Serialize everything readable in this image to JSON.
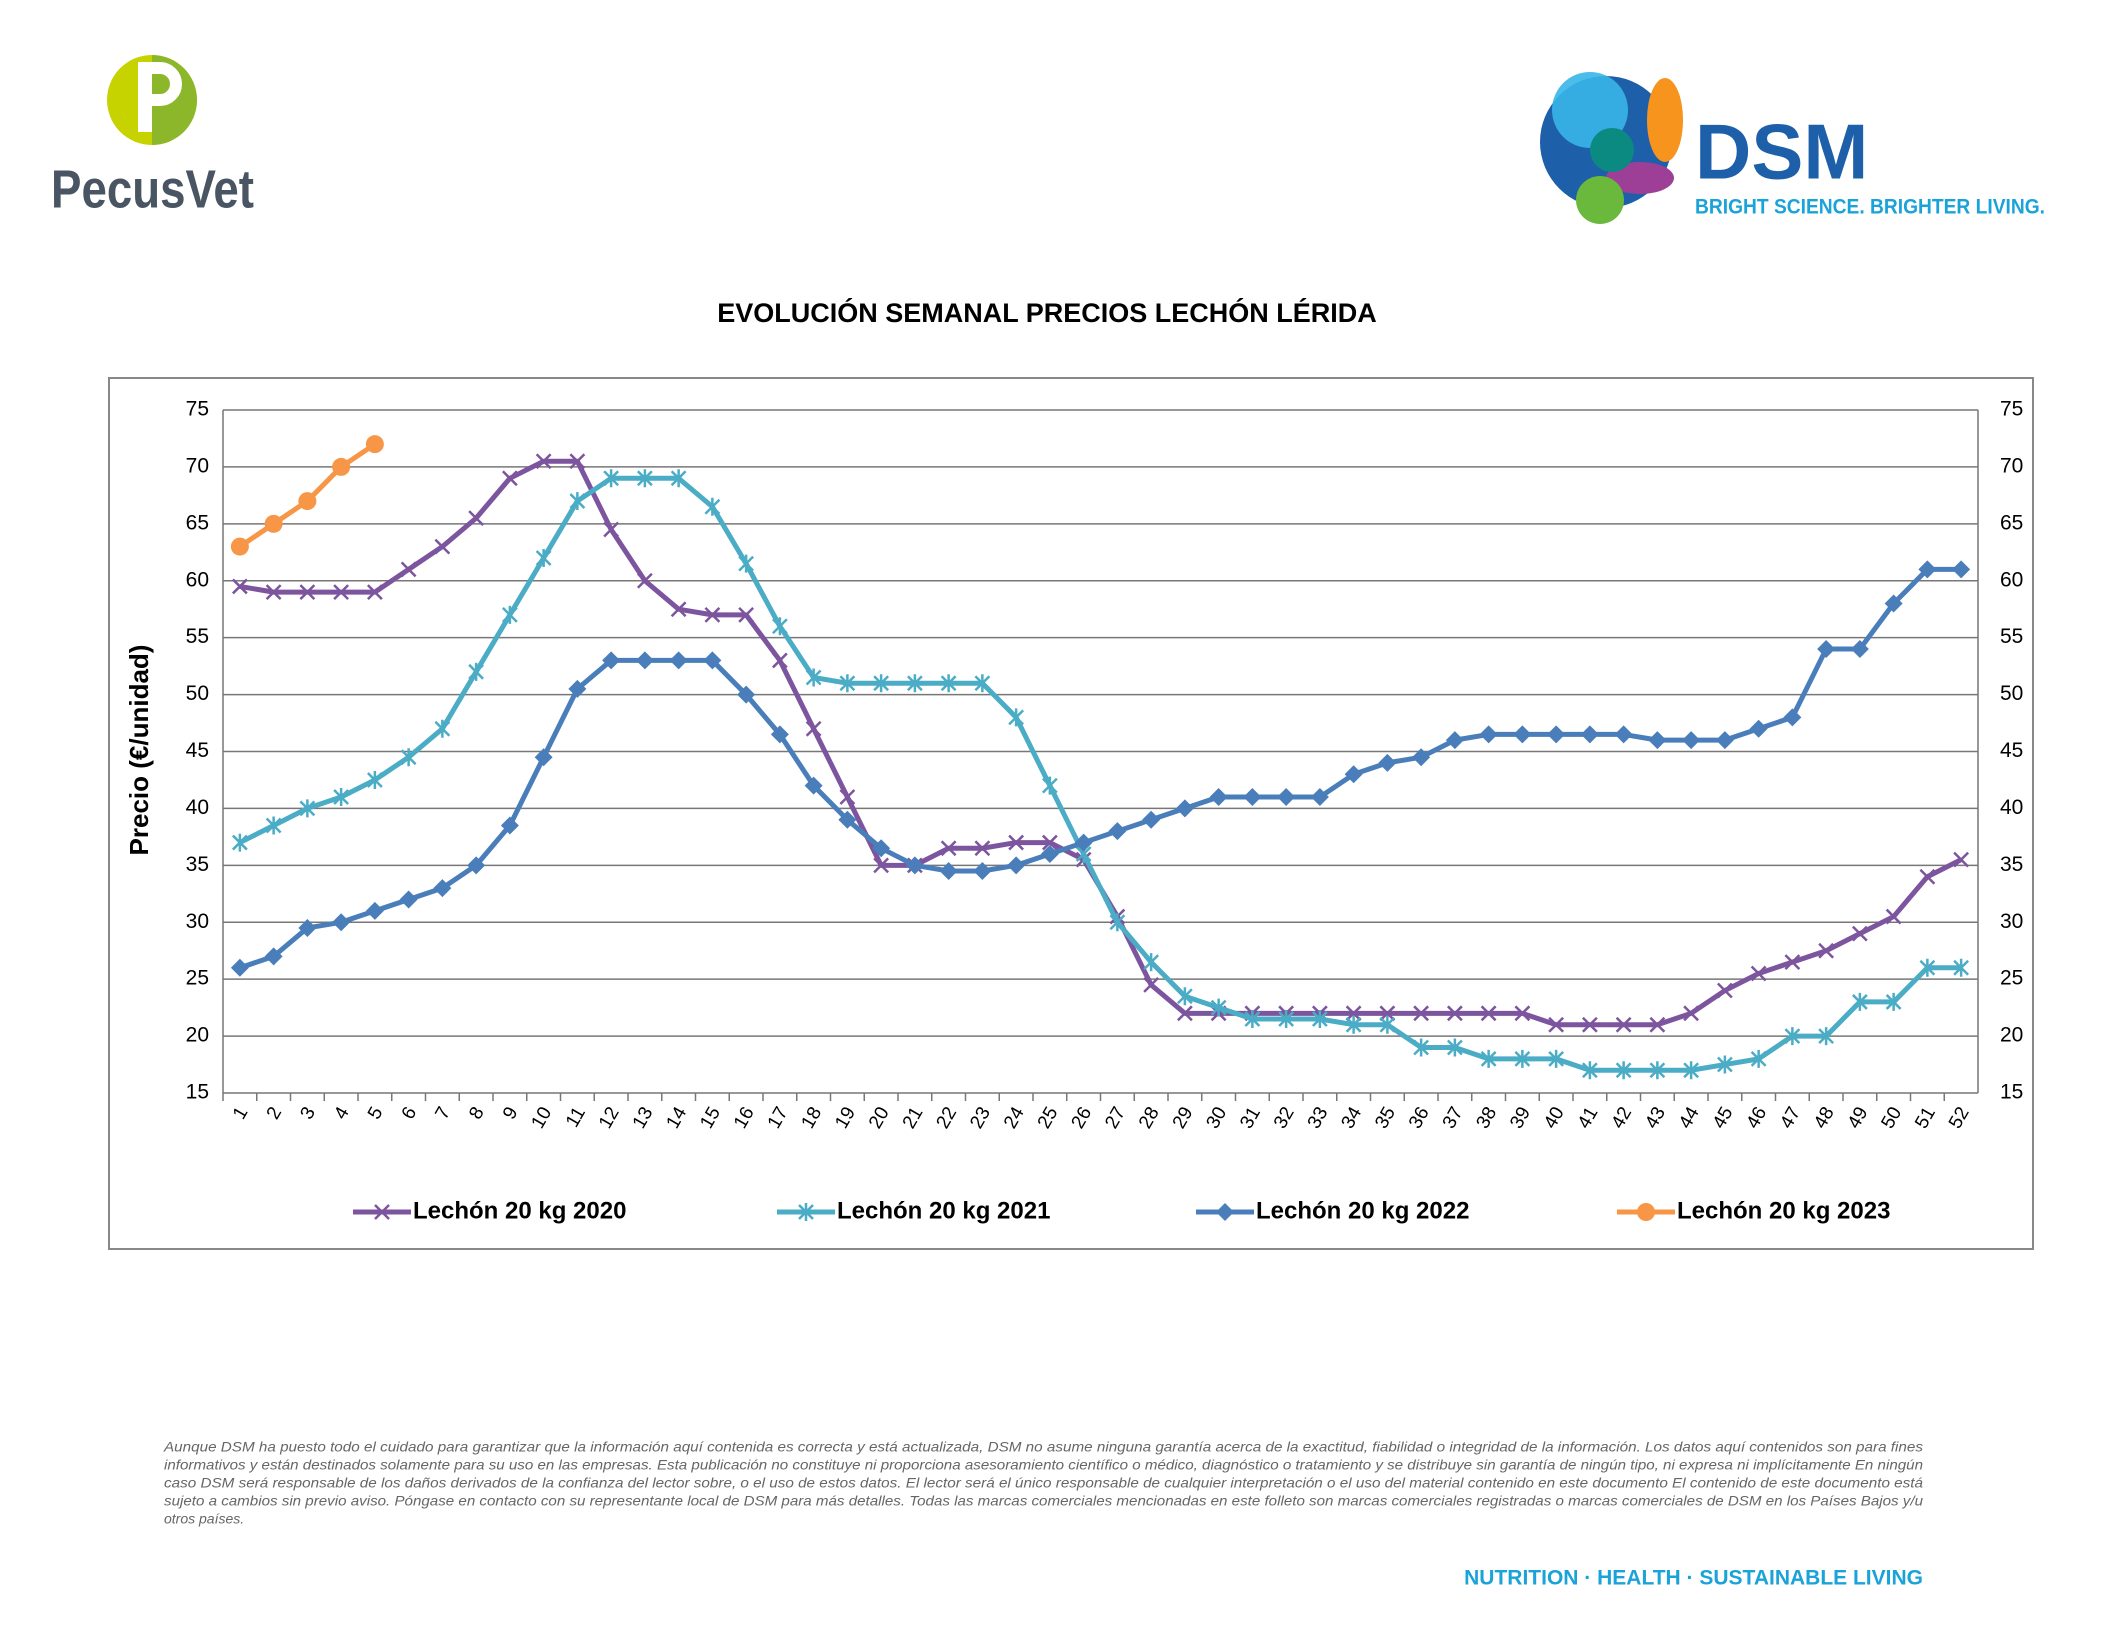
{
  "logo_left": {
    "text": "PecusVet"
  },
  "logo_right": {
    "text": "DSM",
    "tagline": "BRIGHT SCIENCE. BRIGHTER LIVING."
  },
  "chart_data": {
    "type": "line",
    "title": "EVOLUCIÓN SEMANAL PRECIOS LECHÓN LÉRIDA",
    "y_label": "Precio (€/unidad)",
    "categories": [
      "1",
      "2",
      "3",
      "4",
      "5",
      "6",
      "7",
      "8",
      "9",
      "10",
      "11",
      "12",
      "13",
      "14",
      "15",
      "16",
      "17",
      "18",
      "19",
      "20",
      "21",
      "22",
      "23",
      "24",
      "25",
      "26",
      "27",
      "28",
      "29",
      "30",
      "31",
      "32",
      "33",
      "34",
      "35",
      "36",
      "37",
      "38",
      "39",
      "40",
      "41",
      "42",
      "43",
      "44",
      "45",
      "46",
      "47",
      "48",
      "49",
      "50",
      "51",
      "52"
    ],
    "series": [
      {
        "name": "Lechón 20 kg 2020",
        "color": "#7d559f",
        "marker": "x",
        "values": [
          59.5,
          59,
          59,
          59,
          59,
          61,
          63,
          65.5,
          69,
          70.5,
          70.5,
          64.5,
          60,
          57.5,
          57,
          57,
          53,
          47,
          41,
          35,
          35,
          36.5,
          36.5,
          37,
          37,
          35.5,
          30.5,
          24.5,
          22,
          22,
          22,
          22,
          22,
          22,
          22,
          22,
          22,
          22,
          22,
          21,
          21,
          21,
          21,
          22,
          24,
          25.5,
          26.5,
          27.5,
          29,
          30.5,
          34,
          35.5
        ]
      },
      {
        "name": "Lechón 20 kg 2021",
        "color": "#4bacc6",
        "marker": "asterisk",
        "values": [
          37,
          38.5,
          40,
          41,
          42.5,
          44.5,
          47,
          52,
          57,
          62,
          67,
          69,
          69,
          69,
          66.5,
          61.5,
          56,
          51.5,
          51,
          51,
          51,
          51,
          51,
          48,
          42,
          36,
          30,
          26.5,
          23.5,
          22.5,
          21.5,
          21.5,
          21.5,
          21,
          21,
          19,
          19,
          18,
          18,
          18,
          17,
          17,
          17,
          17,
          17.5,
          18,
          20,
          20,
          23,
          23,
          26,
          26
        ]
      },
      {
        "name": "Lechón 20 kg 2022",
        "color": "#4a7ebb",
        "marker": "diamond",
        "values": [
          26,
          27,
          29.5,
          30,
          31,
          32,
          33,
          35,
          38.5,
          44.5,
          50.5,
          53,
          53,
          53,
          53,
          50,
          46.5,
          42,
          39,
          36.5,
          35,
          34.5,
          34.5,
          35,
          36,
          37,
          38,
          39,
          40,
          41,
          41,
          41,
          41,
          43,
          44,
          44.5,
          46,
          46.5,
          46.5,
          46.5,
          46.5,
          46.5,
          46,
          46,
          46,
          47,
          48,
          54,
          54,
          58,
          61,
          61
        ]
      },
      {
        "name": "Lechón 20 kg 2023",
        "color": "#f79646",
        "marker": "circle",
        "values": [
          63,
          65,
          67,
          70,
          72,
          null,
          null,
          null,
          null,
          null,
          null,
          null,
          null,
          null,
          null,
          null,
          null,
          null,
          null,
          null,
          null,
          null,
          null,
          null,
          null,
          null,
          null,
          null,
          null,
          null,
          null,
          null,
          null,
          null,
          null,
          null,
          null,
          null,
          null,
          null,
          null,
          null,
          null,
          null,
          null,
          null,
          null,
          null,
          null,
          null,
          null,
          null
        ]
      }
    ],
    "ylim": [
      15,
      75
    ],
    "yticks": [
      15,
      20,
      25,
      30,
      35,
      40,
      45,
      50,
      55,
      60,
      65,
      70,
      75
    ],
    "grid": true,
    "legend": "bottom"
  },
  "disclaimer": [
    "Aunque DSM ha puesto todo el cuidado para garantizar que la información aquí contenida es correcta y está actualizada, DSM no asume ninguna garantía acerca de la exactitud, fiabilidad o integridad de la información. Los datos aquí contenidos son para fines",
    "informativos y están destinados solamente para su uso en las empresas. Esta publicación no constituye ni proporciona asesoramiento científico o médico, diagnóstico o tratamiento y se distribuye sin garantía de ningún tipo, ni expresa ni implícitamente En ningún",
    "caso DSM será responsable de los daños derivados de la confianza del lector sobre, o el uso de estos datos. El lector será el único responsable de cualquier interpretación o el uso del material contenido en este documento El contenido de este documento está",
    "sujeto a cambios sin previo aviso. Póngase en contacto con su representante local de DSM para más detalles. Todas las marcas comerciales mencionadas en este folleto son marcas comerciales registradas o marcas comerciales de DSM en los Países Bajos y/u",
    "otros países."
  ],
  "footer": "NUTRITION · HEALTH · SUSTAINABLE LIVING"
}
